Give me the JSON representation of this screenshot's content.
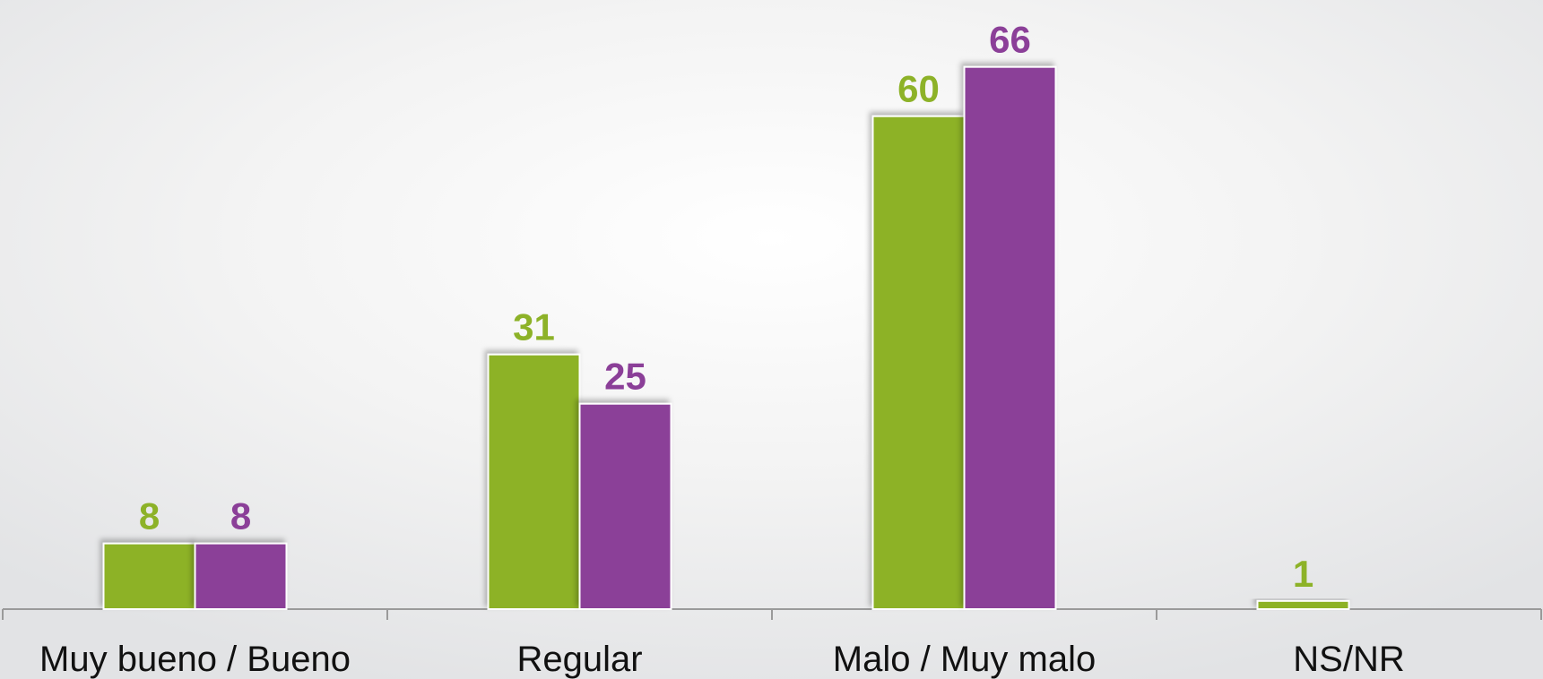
{
  "chart_data": {
    "type": "bar",
    "categories": [
      "Muy bueno / Bueno",
      "Regular",
      "Malo / Muy malo",
      "NS/NR"
    ],
    "series": [
      {
        "color": "#8db228",
        "values": [
          8,
          31,
          60,
          1
        ]
      },
      {
        "color": "#8b3f98",
        "values": [
          8,
          25,
          66,
          null
        ]
      }
    ],
    "ylim": [
      0,
      70
    ],
    "grid": false
  }
}
